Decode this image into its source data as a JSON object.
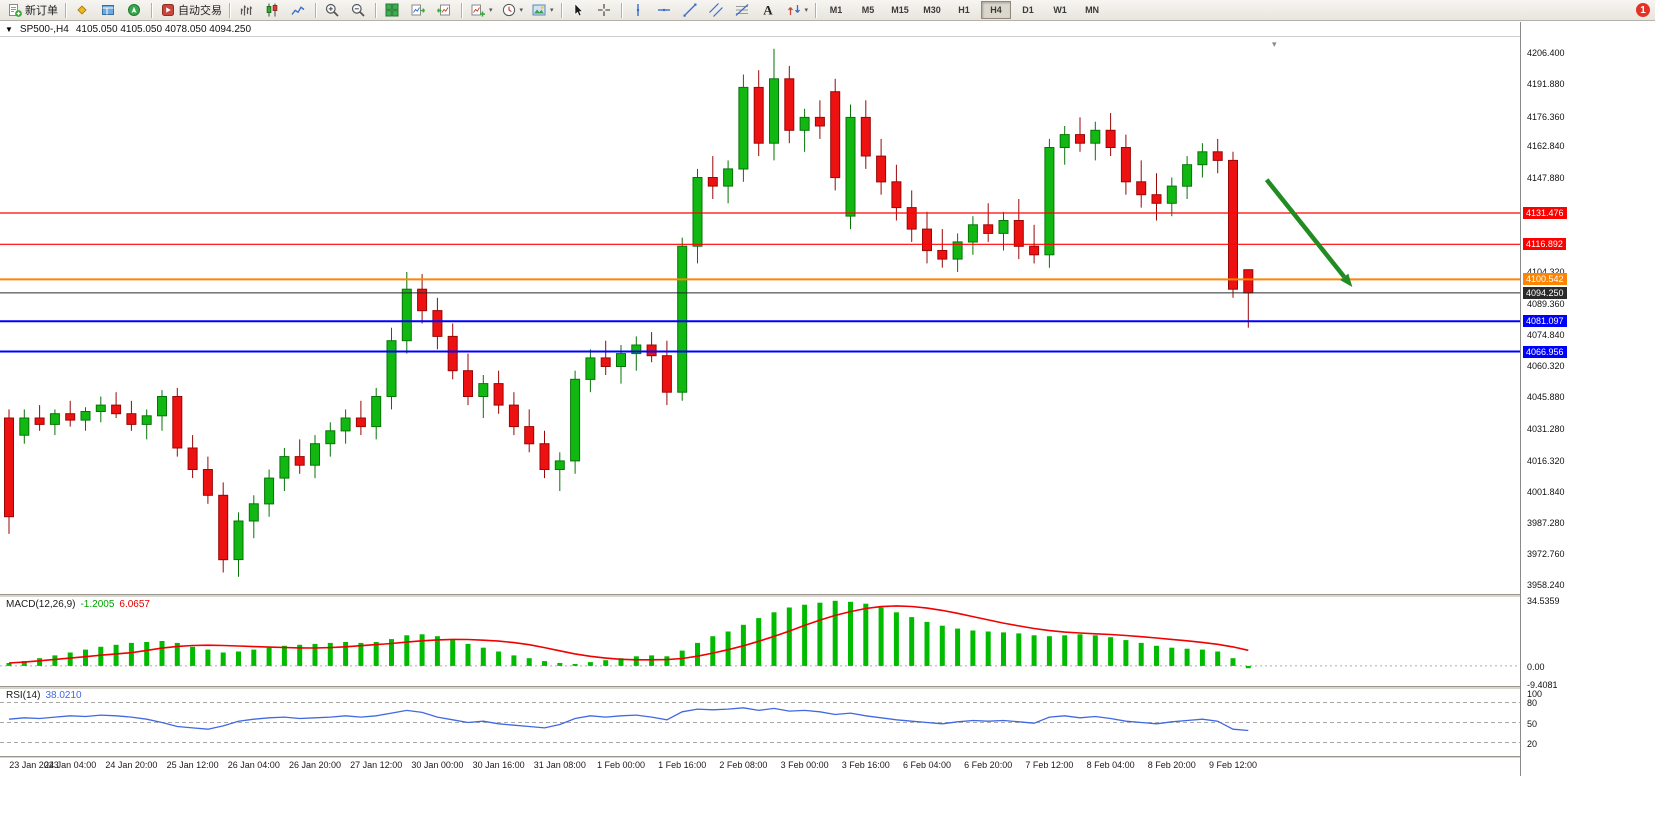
{
  "header": {
    "collapse_icon": "▼",
    "symbol_period": "SP500-,H4",
    "ohlc_text": "4105.050 4105.050 4078.050 4094.250"
  },
  "toolbar": {
    "groups": [
      {
        "type": "button",
        "name": "new-order",
        "icon": "new-order",
        "label": "新订单"
      },
      {
        "type": "icons",
        "items": [
          "market-watch",
          "data-window",
          "navigator"
        ]
      },
      {
        "type": "button",
        "name": "auto-trading",
        "icon": "auto-trading",
        "label": "自动交易"
      },
      {
        "type": "icons",
        "items": [
          "bar-chart",
          "candlestick-chart",
          "line-chart"
        ]
      },
      {
        "type": "icons",
        "items": [
          "zoom-in",
          "zoom-out"
        ]
      },
      {
        "type": "icons",
        "items": [
          "tile-windows",
          "auto-scroll",
          "chart-shift"
        ]
      },
      {
        "type": "icons",
        "items": [
          "new-chart",
          "periods",
          "templates"
        ],
        "dropdown": true
      },
      {
        "type": "icons",
        "items": [
          "cursor",
          "crosshair"
        ]
      },
      {
        "type": "icons",
        "items": [
          "vertical-line",
          "horizontal-line",
          "trendline",
          "channel",
          "fibonacci",
          "text-tool",
          "arrows"
        ],
        "dropdown_last": true
      },
      {
        "type": "timeframes"
      }
    ],
    "timeframes": [
      "M1",
      "M5",
      "M15",
      "M30",
      "H1",
      "H4",
      "D1",
      "W1",
      "MN"
    ],
    "active_timeframe": "H4",
    "notification_count": "1"
  },
  "chart_data": {
    "type": "candlestick",
    "symbol": "SP500-",
    "period": "H4",
    "ohlc_current": {
      "open": 4105.05,
      "high": 4105.05,
      "low": 4078.05,
      "close": 4094.25
    },
    "ylim": [
      3954,
      4213
    ],
    "price_ticks": [
      "4206.400",
      "4191.880",
      "4176.360",
      "4162.840",
      "4147.880",
      "4104.320",
      "4089.360",
      "4074.840",
      "4060.320",
      "4045.880",
      "4031.280",
      "4016.320",
      "4001.840",
      "3987.280",
      "3972.760",
      "3958.240"
    ],
    "candles": [
      [
        4036,
        4040,
        3982,
        3990
      ],
      [
        4028,
        4040,
        4024,
        4036
      ],
      [
        4036,
        4042,
        4030,
        4033
      ],
      [
        4033,
        4040,
        4028,
        4038
      ],
      [
        4038,
        4044,
        4032,
        4035
      ],
      [
        4035,
        4041,
        4030,
        4039
      ],
      [
        4039,
        4046,
        4034,
        4042
      ],
      [
        4042,
        4048,
        4036,
        4038
      ],
      [
        4038,
        4044,
        4030,
        4033
      ],
      [
        4033,
        4040,
        4026,
        4037
      ],
      [
        4037,
        4049,
        4030,
        4046
      ],
      [
        4046,
        4050,
        4018,
        4022
      ],
      [
        4022,
        4028,
        4008,
        4012
      ],
      [
        4012,
        4018,
        3996,
        4000
      ],
      [
        4000,
        4006,
        3964,
        3970
      ],
      [
        3970,
        3992,
        3962,
        3988
      ],
      [
        3988,
        4000,
        3980,
        3996
      ],
      [
        3996,
        4012,
        3990,
        4008
      ],
      [
        4008,
        4022,
        4002,
        4018
      ],
      [
        4018,
        4026,
        4010,
        4014
      ],
      [
        4014,
        4028,
        4008,
        4024
      ],
      [
        4024,
        4034,
        4018,
        4030
      ],
      [
        4030,
        4040,
        4024,
        4036
      ],
      [
        4036,
        4044,
        4028,
        4032
      ],
      [
        4032,
        4050,
        4026,
        4046
      ],
      [
        4046,
        4078,
        4040,
        4072
      ],
      [
        4072,
        4104,
        4066,
        4096
      ],
      [
        4096,
        4103,
        4080,
        4086
      ],
      [
        4086,
        4092,
        4068,
        4074
      ],
      [
        4074,
        4080,
        4054,
        4058
      ],
      [
        4058,
        4066,
        4042,
        4046
      ],
      [
        4046,
        4056,
        4036,
        4052
      ],
      [
        4052,
        4058,
        4038,
        4042
      ],
      [
        4042,
        4048,
        4028,
        4032
      ],
      [
        4032,
        4040,
        4020,
        4024
      ],
      [
        4024,
        4030,
        4008,
        4012
      ],
      [
        4012,
        4020,
        4002,
        4016
      ],
      [
        4016,
        4058,
        4010,
        4054
      ],
      [
        4054,
        4068,
        4048,
        4064
      ],
      [
        4064,
        4072,
        4056,
        4060
      ],
      [
        4060,
        4070,
        4052,
        4066
      ],
      [
        4066,
        4074,
        4058,
        4070
      ],
      [
        4070,
        4076,
        4062,
        4065
      ],
      [
        4065,
        4072,
        4042,
        4048
      ],
      [
        4048,
        4120,
        4044,
        4116
      ],
      [
        4116,
        4152,
        4108,
        4148
      ],
      [
        4148,
        4158,
        4138,
        4144
      ],
      [
        4144,
        4156,
        4136,
        4152
      ],
      [
        4152,
        4196,
        4146,
        4190
      ],
      [
        4190,
        4198,
        4158,
        4164
      ],
      [
        4164,
        4208,
        4156,
        4194
      ],
      [
        4194,
        4200,
        4164,
        4170
      ],
      [
        4170,
        4180,
        4160,
        4176
      ],
      [
        4176,
        4184,
        4166,
        4172
      ],
      [
        4188,
        4194,
        4142,
        4148
      ],
      [
        4130,
        4182,
        4124,
        4176
      ],
      [
        4176,
        4184,
        4152,
        4158
      ],
      [
        4158,
        4166,
        4140,
        4146
      ],
      [
        4146,
        4154,
        4128,
        4134
      ],
      [
        4134,
        4142,
        4118,
        4124
      ],
      [
        4124,
        4132,
        4108,
        4114
      ],
      [
        4114,
        4124,
        4106,
        4110
      ],
      [
        4110,
        4122,
        4104,
        4118
      ],
      [
        4118,
        4130,
        4112,
        4126
      ],
      [
        4126,
        4136,
        4118,
        4122
      ],
      [
        4122,
        4132,
        4114,
        4128
      ],
      [
        4128,
        4138,
        4110,
        4116
      ],
      [
        4116,
        4126,
        4108,
        4112
      ],
      [
        4112,
        4166,
        4106,
        4162
      ],
      [
        4162,
        4172,
        4154,
        4168
      ],
      [
        4168,
        4176,
        4160,
        4164
      ],
      [
        4164,
        4174,
        4156,
        4170
      ],
      [
        4170,
        4178,
        4158,
        4162
      ],
      [
        4162,
        4168,
        4140,
        4146
      ],
      [
        4146,
        4156,
        4134,
        4140
      ],
      [
        4140,
        4150,
        4128,
        4136
      ],
      [
        4136,
        4148,
        4130,
        4144
      ],
      [
        4144,
        4158,
        4138,
        4154
      ],
      [
        4154,
        4164,
        4148,
        4160
      ],
      [
        4160,
        4166,
        4150,
        4156
      ],
      [
        4156,
        4160,
        4092,
        4096
      ],
      [
        4105.05,
        4105.05,
        4078.05,
        4094.25
      ]
    ],
    "time_labels": [
      "23 Jan 2023",
      "24 Jan 04:00",
      "24 Jan 20:00",
      "25 Jan 12:00",
      "26 Jan 04:00",
      "26 Jan 20:00",
      "27 Jan 12:00",
      "30 Jan 00:00",
      "30 Jan 16:00",
      "31 Jan 08:00",
      "1 Feb 00:00",
      "1 Feb 16:00",
      "2 Feb 08:00",
      "3 Feb 00:00",
      "3 Feb 16:00",
      "6 Feb 04:00",
      "6 Feb 20:00",
      "7 Feb 12:00",
      "8 Feb 04:00",
      "8 Feb 20:00",
      "9 Feb 12:00"
    ],
    "candles_per_label": 4,
    "hlines": [
      {
        "price": 4131.476,
        "label": "4131.476",
        "color": "#ff0000",
        "width": 1.2
      },
      {
        "price": 4116.892,
        "label": "4116.892",
        "color": "#ff0000",
        "width": 1.2
      },
      {
        "price": 4100.542,
        "label": "4100.542",
        "color": "#ff8400",
        "width": 2
      },
      {
        "price": 4094.25,
        "label": "4094.250",
        "color": "#2a2a2a",
        "width": 1,
        "role": "current-price"
      },
      {
        "price": 4081.097,
        "label": "4081.097",
        "color": "#0000ff",
        "width": 2
      },
      {
        "price": 4066.956,
        "label": "4066.956",
        "color": "#0000ff",
        "width": 2
      }
    ],
    "trend_arrow": {
      "from": {
        "bar": 82.2,
        "price": 4147
      },
      "to": {
        "bar": 87.8,
        "price": 4097
      },
      "color": "#228B22"
    },
    "colors": {
      "bull": "#12b812",
      "bull_stroke": "#077407",
      "bear": "#ee1111",
      "bear_stroke": "#990707",
      "background": "#ffffff"
    },
    "macd": {
      "title": "MACD(12,26,9)",
      "value_main": "-1.2005",
      "value_signal": "6.0657",
      "ylim": [
        -10.5,
        36
      ],
      "axis_labels": [
        {
          "text": "34.5359",
          "value": 34.5359
        },
        {
          "text": "0.00",
          "value": 0
        },
        {
          "text": "-9.4081",
          "value": -9.4081
        }
      ],
      "histogram_color": "#00bb00",
      "signal_color": "#f00000",
      "histogram": [
        1.5,
        2.5,
        4,
        5.5,
        7,
        8.5,
        10,
        11,
        12,
        12.5,
        13,
        12,
        10,
        8.5,
        7,
        7.5,
        8.5,
        9.5,
        10.5,
        11,
        11.5,
        12,
        12.5,
        12,
        12.5,
        14,
        16,
        16.5,
        15.5,
        13.5,
        11.5,
        9.5,
        7.5,
        5.5,
        4,
        2.5,
        1.5,
        1,
        2,
        3,
        4,
        5,
        5.5,
        5,
        8,
        12,
        15.5,
        18,
        21.5,
        25,
        28,
        30.5,
        32,
        33,
        34,
        33.5,
        32.5,
        30.5,
        28,
        25.5,
        23,
        21,
        19.5,
        18.5,
        18,
        17.5,
        17,
        16,
        15.5,
        16,
        16.5,
        16,
        15,
        13.5,
        12,
        10.5,
        9.5,
        9,
        8.5,
        7.5,
        4,
        -1.2
      ]
    },
    "rsi": {
      "title": "RSI(14)",
      "value": "38.0210",
      "ylim": [
        0,
        100
      ],
      "levels": [
        80,
        50,
        20
      ],
      "axis_labels": [
        {
          "text": "100",
          "value": 100
        },
        {
          "text": "80",
          "value": 80
        },
        {
          "text": "50",
          "value": 50
        },
        {
          "text": "20",
          "value": 20
        }
      ],
      "color": "#4169e1",
      "values": [
        55,
        57,
        56,
        58,
        60,
        59,
        61,
        60,
        58,
        55,
        50,
        44,
        42,
        40,
        45,
        52,
        55,
        57,
        58,
        56,
        57,
        58,
        60,
        58,
        60,
        64,
        68,
        65,
        58,
        54,
        50,
        52,
        48,
        46,
        44,
        42,
        47,
        56,
        60,
        58,
        60,
        61,
        58,
        54,
        66,
        70,
        69,
        70,
        72,
        68,
        71,
        67,
        68,
        66,
        62,
        64,
        60,
        57,
        54,
        52,
        50,
        48,
        51,
        53,
        52,
        53,
        51,
        49,
        58,
        60,
        57,
        59,
        56,
        52,
        50,
        48,
        51,
        53,
        55,
        52,
        40,
        38
      ]
    }
  }
}
